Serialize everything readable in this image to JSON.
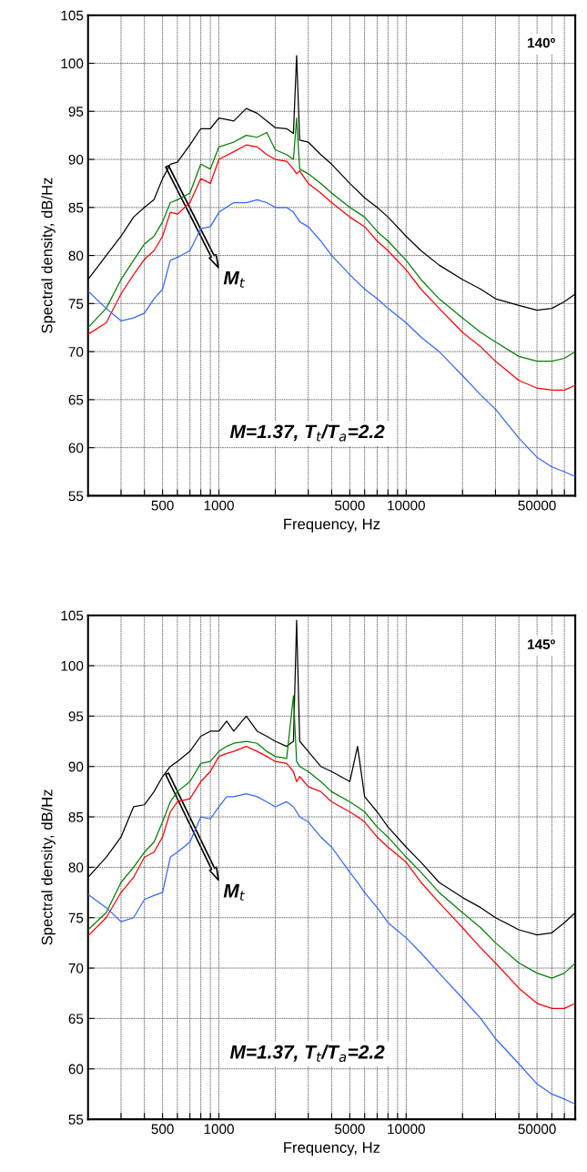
{
  "chart_data": [
    {
      "type": "line",
      "xlabel": "Frequency, Hz",
      "ylabel": "Spectral density, dB/Hz",
      "log": "x",
      "grid": true,
      "legend": false,
      "marker": "none",
      "line_style": "solid",
      "annotations": [
        "140º",
        "M$_{t}$",
        "M=1.37, T$_{t}$/T$_{a}$=2.2"
      ],
      "x": [
        200,
        250,
        300,
        350,
        400,
        450,
        500,
        550,
        600,
        700,
        800,
        900,
        1000,
        1200,
        1400,
        1600,
        1800,
        2000,
        2300,
        2500,
        2600,
        2700,
        3000,
        3500,
        4000,
        5000,
        6000,
        7000,
        8000,
        10000,
        12000,
        15000,
        20000,
        25000,
        30000,
        40000,
        50000,
        60000,
        70000,
        80000
      ],
      "xlim": [
        200,
        80000
      ],
      "xticks": [
        {
          "value": 300,
          "label": null
        },
        {
          "value": 400,
          "label": null
        },
        500,
        {
          "value": 600,
          "label": null
        },
        {
          "value": 700,
          "label": null
        },
        {
          "value": 800,
          "label": null
        },
        {
          "value": 900,
          "label": null
        },
        1000,
        {
          "value": 2000,
          "label": null
        },
        {
          "value": 3000,
          "label": null
        },
        {
          "value": 4000,
          "label": null
        },
        5000,
        {
          "value": 6000,
          "label": null
        },
        {
          "value": 7000,
          "label": null
        },
        {
          "value": 8000,
          "label": null
        },
        {
          "value": 9000,
          "label": null
        },
        10000,
        {
          "value": 20000,
          "label": null
        },
        {
          "value": 30000,
          "label": null
        },
        {
          "value": 40000,
          "label": null
        },
        50000,
        {
          "value": 60000,
          "label": null
        },
        {
          "value": 70000,
          "label": null
        }
      ],
      "ylim": [
        55,
        105
      ],
      "yticks": [
        55,
        60,
        65,
        70,
        75,
        80,
        85,
        90,
        95,
        100,
        105
      ],
      "series": [
        {
          "color": "#000000",
          "values": [
            77.5,
            80,
            82,
            84,
            85,
            85.8,
            88,
            89.5,
            89.7,
            91.5,
            93.2,
            93.2,
            94.3,
            94,
            95.3,
            94.8,
            94,
            93.3,
            93.2,
            92.7,
            100.8,
            92,
            91.8,
            90.5,
            89.5,
            87.5,
            86,
            85,
            84,
            82,
            80.5,
            79,
            77.5,
            76.5,
            75.5,
            74.8,
            74.3,
            74.5,
            75.2,
            76
          ]
        },
        {
          "color": "#008000",
          "values": [
            72.5,
            74.5,
            77.5,
            79.5,
            81.2,
            82,
            83.5,
            85.5,
            85.8,
            86.5,
            89.5,
            89,
            91.3,
            91.8,
            92.5,
            92.3,
            92.8,
            91,
            90.5,
            90,
            94.3,
            89,
            88.5,
            87.5,
            86.5,
            85,
            84,
            82.5,
            81.5,
            79.5,
            77.5,
            75.5,
            73.5,
            72,
            71,
            69.5,
            69,
            69,
            69.3,
            70
          ]
        },
        {
          "color": "#ff0000",
          "values": [
            71.8,
            73,
            76,
            78,
            79.6,
            80.5,
            82,
            84.5,
            84.3,
            85.5,
            88,
            87.5,
            90,
            90.8,
            91.5,
            91.3,
            90.5,
            90,
            89.8,
            89,
            88.5,
            88.8,
            87.5,
            86.5,
            85.5,
            84,
            83,
            81.5,
            80.5,
            78.5,
            76.5,
            74.5,
            72,
            70.5,
            69,
            67,
            66.2,
            66,
            66,
            66.5
          ]
        },
        {
          "color": "#3366ff",
          "values": [
            76.3,
            74.5,
            73.2,
            73.5,
            74,
            75.5,
            76.5,
            79.5,
            79.8,
            80.5,
            82.8,
            83,
            84.5,
            85.5,
            85.5,
            85.8,
            85.5,
            85,
            85,
            84.5,
            84,
            83.5,
            83,
            81.5,
            80,
            78,
            76.5,
            75.5,
            74.5,
            73,
            71.5,
            70,
            67.5,
            65.5,
            64,
            61,
            59,
            58,
            57.5,
            57
          ]
        }
      ]
    },
    {
      "type": "line",
      "xlabel": "Frequency, Hz",
      "ylabel": "Spectral density, dB/Hz",
      "log": "x",
      "grid": true,
      "legend": false,
      "marker": "none",
      "line_style": "solid",
      "annotations": [
        "145º",
        "M$_{t}$",
        "M=1.37, T$_{t}$/T$_{a}$=2.2"
      ],
      "x": [
        200,
        250,
        300,
        350,
        400,
        450,
        500,
        550,
        600,
        700,
        800,
        900,
        1000,
        1100,
        1200,
        1400,
        1600,
        1800,
        2000,
        2300,
        2500,
        2600,
        2700,
        3000,
        3500,
        4000,
        5000,
        5500,
        6000,
        7000,
        8000,
        10000,
        12000,
        15000,
        20000,
        25000,
        30000,
        40000,
        50000,
        60000,
        70000,
        80000
      ],
      "xlim": [
        200,
        80000
      ],
      "xticks": [
        {
          "value": 300,
          "label": null
        },
        {
          "value": 400,
          "label": null
        },
        500,
        {
          "value": 600,
          "label": null
        },
        {
          "value": 700,
          "label": null
        },
        {
          "value": 800,
          "label": null
        },
        {
          "value": 900,
          "label": null
        },
        1000,
        {
          "value": 2000,
          "label": null
        },
        {
          "value": 3000,
          "label": null
        },
        {
          "value": 4000,
          "label": null
        },
        5000,
        {
          "value": 6000,
          "label": null
        },
        {
          "value": 7000,
          "label": null
        },
        {
          "value": 8000,
          "label": null
        },
        {
          "value": 9000,
          "label": null
        },
        10000,
        {
          "value": 20000,
          "label": null
        },
        {
          "value": 30000,
          "label": null
        },
        {
          "value": 40000,
          "label": null
        },
        50000,
        {
          "value": 60000,
          "label": null
        },
        {
          "value": 70000,
          "label": null
        }
      ],
      "ylim": [
        55,
        105
      ],
      "yticks": [
        55,
        60,
        65,
        70,
        75,
        80,
        85,
        90,
        95,
        100,
        105
      ],
      "series": [
        {
          "color": "#000000",
          "values": [
            79,
            81,
            83,
            86,
            86.2,
            87.5,
            89,
            90,
            90.5,
            91.5,
            93,
            93.5,
            93.5,
            94.5,
            93.5,
            95,
            93.5,
            93,
            92.5,
            92,
            92.5,
            104.5,
            92.5,
            91.5,
            90,
            89.5,
            88.5,
            92,
            87,
            85.5,
            84,
            82,
            80.5,
            78.5,
            77,
            76,
            75,
            73.8,
            73.3,
            73.5,
            74.5,
            75.5
          ]
        },
        {
          "color": "#008000",
          "values": [
            73.8,
            75.5,
            78.5,
            80,
            81.5,
            82.5,
            84.5,
            86.5,
            87.5,
            88.5,
            90.3,
            90.5,
            91.5,
            92,
            92.3,
            92.5,
            92.3,
            91.5,
            91,
            90.8,
            97,
            90.5,
            90,
            89.5,
            88.5,
            87.5,
            86.5,
            86,
            85.5,
            84,
            83,
            81,
            79.5,
            77.5,
            75.5,
            74,
            72.5,
            70.5,
            69.5,
            69,
            69.5,
            70.5
          ]
        },
        {
          "color": "#ff0000",
          "values": [
            73.2,
            75,
            77.5,
            79,
            81,
            81.5,
            83,
            85.5,
            86.5,
            86.8,
            88.5,
            89.5,
            91,
            91.3,
            91.5,
            92,
            91.5,
            91,
            90.5,
            90.3,
            89.5,
            88.5,
            89,
            88,
            87.5,
            86.5,
            85.5,
            85,
            84.5,
            83,
            82,
            80.5,
            78.5,
            76.5,
            74,
            72,
            70.5,
            68,
            66.5,
            66,
            66,
            66.5
          ]
        },
        {
          "color": "#3366ff",
          "values": [
            77.3,
            76,
            74.6,
            75,
            76.8,
            77.2,
            77.5,
            81,
            81.5,
            82.5,
            85,
            84.8,
            86,
            87,
            87,
            87.3,
            87,
            86.5,
            86,
            86.5,
            86,
            85.5,
            85,
            84.5,
            83,
            82,
            79.5,
            78.5,
            77.5,
            76,
            74.5,
            73,
            71.5,
            69.5,
            67,
            65,
            63,
            60.5,
            58.5,
            57.5,
            57,
            56.5
          ]
        }
      ]
    }
  ]
}
